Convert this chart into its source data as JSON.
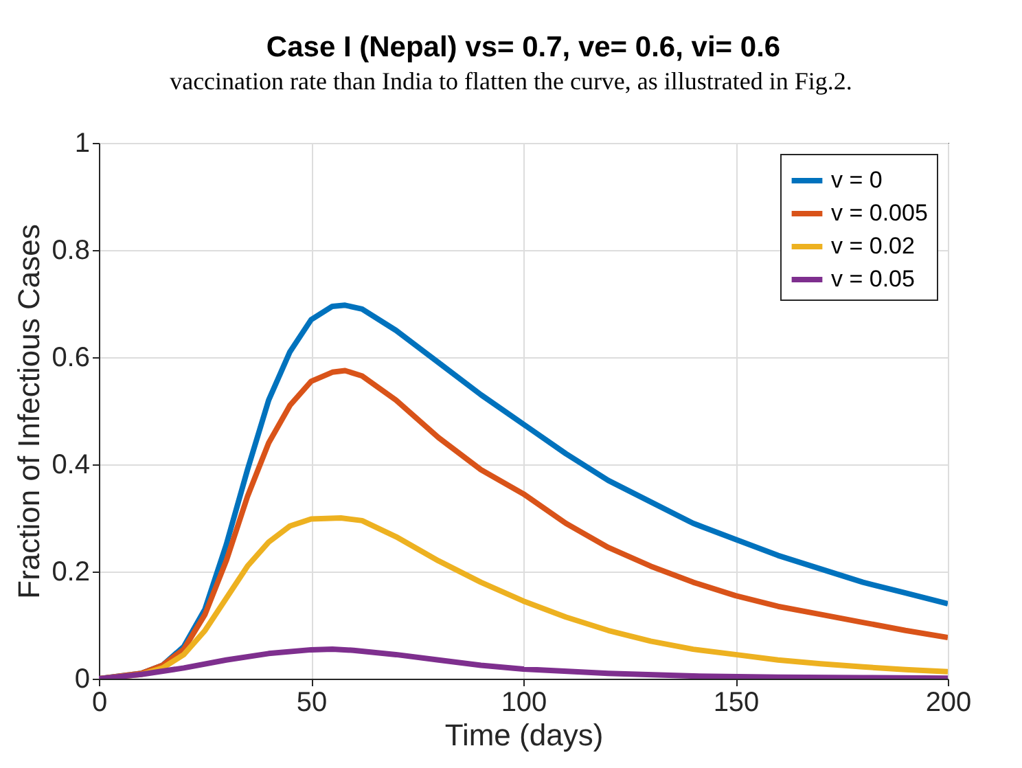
{
  "chart_data": {
    "type": "line",
    "title": "Case I (Nepal) vs= 0.7, ve= 0.6, vi= 0.6",
    "xlabel": "Time (days)",
    "ylabel": "Fraction of Infectious Cases",
    "annotations": [
      "vaccination rate than India to flatten the curve, as illustrated in Fig.2."
    ],
    "xlim": [
      0,
      200
    ],
    "xticks": [
      0,
      50,
      100,
      150,
      200
    ],
    "ylim": [
      0,
      1
    ],
    "yticks": [
      0,
      0.2,
      0.4,
      0.6,
      0.8,
      1
    ],
    "grid": true,
    "legend": "top right",
    "marker": "none",
    "line_style": "solid",
    "series": [
      {
        "name": "v = 0",
        "color": "#0072bd",
        "x": [
          0,
          10,
          15,
          20,
          25,
          30,
          35,
          40,
          45,
          50,
          55,
          58,
          62,
          70,
          80,
          90,
          100,
          110,
          120,
          130,
          140,
          150,
          160,
          170,
          180,
          190,
          200
        ],
        "values": [
          0,
          0.01,
          0.025,
          0.06,
          0.13,
          0.25,
          0.39,
          0.52,
          0.61,
          0.67,
          0.695,
          0.697,
          0.69,
          0.65,
          0.59,
          0.53,
          0.475,
          0.42,
          0.37,
          0.33,
          0.29,
          0.26,
          0.23,
          0.205,
          0.18,
          0.16,
          0.14
        ]
      },
      {
        "name": "v = 0.005",
        "color": "#d95319",
        "x": [
          0,
          10,
          15,
          20,
          25,
          30,
          35,
          40,
          45,
          50,
          55,
          58,
          62,
          70,
          80,
          90,
          100,
          110,
          120,
          130,
          140,
          150,
          160,
          170,
          180,
          190,
          200
        ],
        "values": [
          0,
          0.01,
          0.025,
          0.055,
          0.12,
          0.22,
          0.34,
          0.44,
          0.51,
          0.555,
          0.572,
          0.575,
          0.565,
          0.52,
          0.45,
          0.39,
          0.345,
          0.29,
          0.245,
          0.21,
          0.18,
          0.155,
          0.135,
          0.12,
          0.105,
          0.09,
          0.077
        ]
      },
      {
        "name": "v = 0.02",
        "color": "#edb120",
        "x": [
          0,
          10,
          15,
          20,
          25,
          30,
          35,
          40,
          45,
          50,
          57,
          62,
          70,
          80,
          90,
          100,
          110,
          120,
          130,
          140,
          150,
          160,
          170,
          180,
          190,
          200
        ],
        "values": [
          0,
          0.008,
          0.02,
          0.045,
          0.09,
          0.15,
          0.21,
          0.255,
          0.285,
          0.298,
          0.3,
          0.295,
          0.265,
          0.22,
          0.18,
          0.145,
          0.115,
          0.09,
          0.07,
          0.055,
          0.045,
          0.035,
          0.028,
          0.022,
          0.017,
          0.013
        ]
      },
      {
        "name": "v = 0.05",
        "color": "#7e2f8e",
        "x": [
          0,
          10,
          20,
          30,
          40,
          50,
          55,
          60,
          70,
          80,
          90,
          100,
          120,
          140,
          160,
          180,
          200
        ],
        "values": [
          0,
          0.008,
          0.02,
          0.035,
          0.047,
          0.054,
          0.055,
          0.053,
          0.045,
          0.035,
          0.025,
          0.018,
          0.01,
          0.005,
          0.003,
          0.002,
          0.001
        ]
      }
    ]
  }
}
